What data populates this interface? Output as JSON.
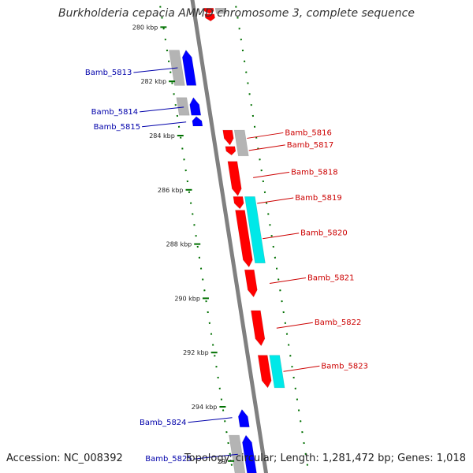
{
  "title": "Burkholderia cepacia AMMD chromosome 3, complete sequence",
  "accession": "Accession: NC_008392",
  "topology": "Topology: circular; Length: 1,281,472 bp; Genes: 1,018",
  "colors": {
    "forward": "#ff0000",
    "reverse": "#0000ff",
    "cds_grey": "#b4b4b4",
    "cyan": "#00e8e8",
    "backbone": "#808080",
    "ticks": "#007000",
    "label_forward": "#cc0000",
    "label_reverse": "#0000aa"
  },
  "ticks": [
    {
      "label": "280 kbp",
      "kbp": 280
    },
    {
      "label": "282 kbp",
      "kbp": 282
    },
    {
      "label": "284 kbp",
      "kbp": 284
    },
    {
      "label": "286 kbp",
      "kbp": 286
    },
    {
      "label": "288 kbp",
      "kbp": 288
    },
    {
      "label": "290 kbp",
      "kbp": 290
    },
    {
      "label": "292 kbp",
      "kbp": 292
    },
    {
      "label": "294 kbp",
      "kbp": 294
    },
    {
      "label": "29",
      "kbp": 296
    }
  ],
  "features": [
    {
      "strand": "+",
      "kind": "gene",
      "start": 279.3,
      "end": 279.5
    },
    {
      "strand": "+",
      "kind": "cds",
      "start": 279.3,
      "end": 279.5
    },
    {
      "strand": "+",
      "kind": "gene",
      "start": 279.52,
      "end": 279.78
    },
    {
      "strand": "-",
      "kind": "cds",
      "start": 280.85,
      "end": 282.15
    },
    {
      "strand": "-",
      "kind": "gene",
      "start": 280.85,
      "end": 282.15
    },
    {
      "strand": "-",
      "kind": "cds",
      "start": 282.6,
      "end": 283.25
    },
    {
      "strand": "-",
      "kind": "gene",
      "start": 282.6,
      "end": 283.25
    },
    {
      "strand": "-",
      "kind": "gene",
      "start": 283.3,
      "end": 283.65
    },
    {
      "strand": "+",
      "kind": "gene",
      "start": 283.8,
      "end": 284.35
    },
    {
      "strand": "+",
      "kind": "cds",
      "start": 283.8,
      "end": 284.75
    },
    {
      "strand": "+",
      "kind": "gene",
      "start": 284.4,
      "end": 284.72
    },
    {
      "strand": "+",
      "kind": "gene",
      "start": 284.95,
      "end": 286.22
    },
    {
      "strand": "+",
      "kind": "gene",
      "start": 286.25,
      "end": 286.7
    },
    {
      "strand": "+",
      "kind": "cds",
      "start": 286.25,
      "end": 288.7
    },
    {
      "strand": "+",
      "kind": "gene",
      "start": 286.75,
      "end": 288.85
    },
    {
      "strand": "+",
      "kind": "gene",
      "start": 288.95,
      "end": 289.95
    },
    {
      "strand": "+",
      "kind": "gene",
      "start": 290.45,
      "end": 291.75
    },
    {
      "strand": "+",
      "kind": "gene",
      "start": 292.1,
      "end": 293.3
    },
    {
      "strand": "+",
      "kind": "cds",
      "start": 292.1,
      "end": 293.3
    },
    {
      "strand": "-",
      "kind": "gene",
      "start": 294.1,
      "end": 294.75
    },
    {
      "strand": "-",
      "kind": "cds",
      "start": 295.05,
      "end": 296.5
    },
    {
      "strand": "-",
      "kind": "gene",
      "start": 295.05,
      "end": 296.5
    }
  ],
  "gene_labels": [
    {
      "name": "Bamb_5813",
      "strand": "-",
      "kbp": 281.5
    },
    {
      "name": "Bamb_5814",
      "strand": "-",
      "kbp": 282.95
    },
    {
      "name": "Bamb_5815",
      "strand": "-",
      "kbp": 283.5
    },
    {
      "name": "Bamb_5816",
      "strand": "+",
      "kbp": 284.1
    },
    {
      "name": "Bamb_5817",
      "strand": "+",
      "kbp": 284.55
    },
    {
      "name": "Bamb_5818",
      "strand": "+",
      "kbp": 285.55
    },
    {
      "name": "Bamb_5819",
      "strand": "+",
      "kbp": 286.5
    },
    {
      "name": "Bamb_5820",
      "strand": "+",
      "kbp": 287.8
    },
    {
      "name": "Bamb_5821",
      "strand": "+",
      "kbp": 289.45
    },
    {
      "name": "Bamb_5822",
      "strand": "+",
      "kbp": 291.1
    },
    {
      "name": "Bamb_5823",
      "strand": "+",
      "kbp": 292.7
    },
    {
      "name": "Bamb_5824",
      "strand": "-",
      "kbp": 294.4
    },
    {
      "name": "Bamb_5825",
      "strand": "-",
      "kbp": 295.75
    }
  ]
}
